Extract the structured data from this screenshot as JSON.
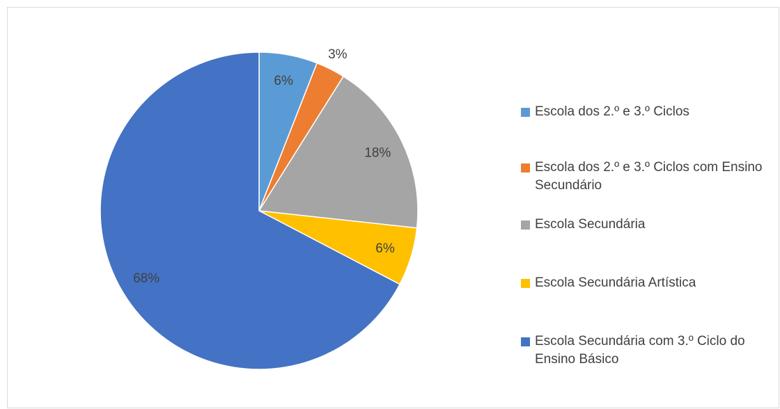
{
  "chart_data": {
    "type": "pie",
    "categories": [
      "Escola dos 2.º e 3.º Ciclos",
      "Escola dos 2.º e 3.º Ciclos com Ensino Secundário",
      "Escola Secundária",
      "Escola Secundária Artística",
      "Escola Secundária com 3.º Ciclo do Ensino Básico"
    ],
    "values": [
      6,
      3,
      18,
      6,
      68
    ],
    "value_labels": [
      "6%",
      "3%",
      "18%",
      "6%",
      "68%"
    ],
    "colors": [
      "#5b9bd5",
      "#ed7d31",
      "#a5a5a5",
      "#ffc000",
      "#4472c4"
    ],
    "legend": "right"
  }
}
